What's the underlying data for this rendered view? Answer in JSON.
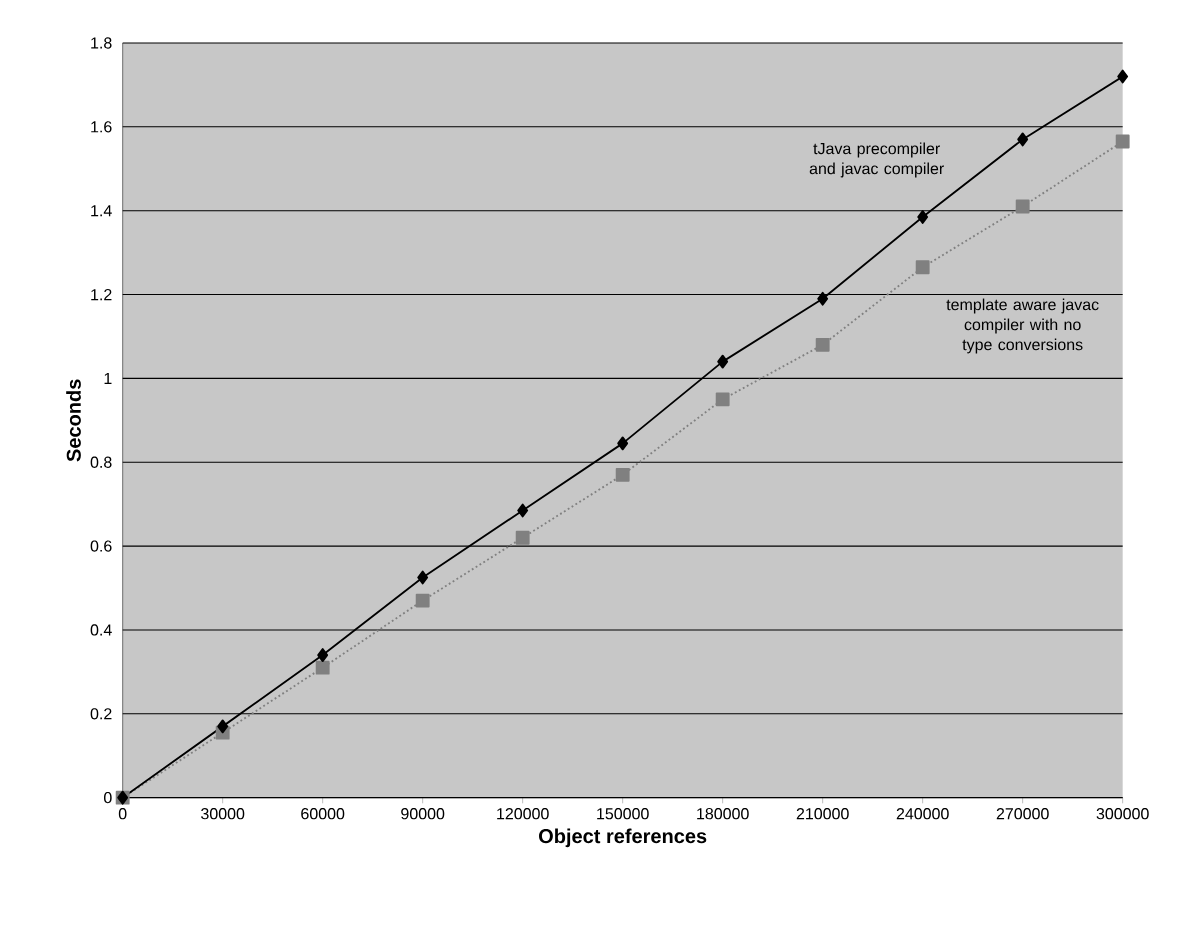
{
  "chart_data": {
    "type": "line",
    "xlabel": "Object references",
    "ylabel": "Seconds",
    "x": [
      0,
      30000,
      60000,
      90000,
      120000,
      150000,
      180000,
      210000,
      240000,
      270000,
      300000
    ],
    "xlim": [
      0,
      300000
    ],
    "xticks": [
      0,
      30000,
      60000,
      90000,
      120000,
      150000,
      180000,
      210000,
      240000,
      270000,
      300000
    ],
    "ylim": [
      0,
      1.8
    ],
    "yticks": [
      0,
      0.2,
      0.4,
      0.6,
      0.8,
      1,
      1.2,
      1.4,
      1.6,
      1.8
    ],
    "grid": "y",
    "legend": false,
    "series": [
      {
        "name": "tJava precompiler and javac compiler",
        "color": "#000000",
        "marker": "diamond",
        "line_style": "solid",
        "values": [
          0,
          0.17,
          0.34,
          0.525,
          0.685,
          0.845,
          1.04,
          1.19,
          1.385,
          1.57,
          1.72
        ]
      },
      {
        "name": "template aware javac compiler with no type conversions",
        "color": "#808080",
        "marker": "square",
        "line_style": "dotted",
        "values": [
          0,
          0.155,
          0.31,
          0.47,
          0.62,
          0.77,
          0.95,
          1.08,
          1.265,
          1.41,
          1.565
        ]
      }
    ]
  }
}
